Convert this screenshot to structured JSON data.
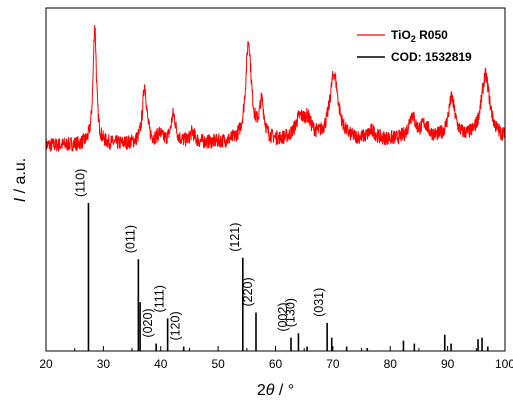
{
  "chart_data": {
    "type": "line",
    "xlabel_theta": "θ",
    "xlabel_prefix": "2",
    "xlabel_suffix": " / °",
    "ylabel_italic": "I",
    "ylabel_suffix": " / a.u.",
    "xlim": [
      20,
      100
    ],
    "xticks": [
      "20",
      "30",
      "40",
      "50",
      "60",
      "70",
      "80",
      "90",
      "100"
    ],
    "legend_position": "top-right",
    "legend": [
      {
        "key": "tio2",
        "name_main": "TiO",
        "name_sub": "2",
        "name_rest": " R050",
        "color": "#ff0000"
      },
      {
        "key": "cod",
        "name_main": "COD: 1532819",
        "name_sub": "",
        "name_rest": "",
        "color": "#000000"
      }
    ],
    "series": [
      {
        "name": "TiO2 R050",
        "color": "#ff0000",
        "baseline": 0.3,
        "noise": 0.045,
        "peaks": [
          {
            "x": 28.5,
            "h": 0.72,
            "w": 0.35
          },
          {
            "x": 37.2,
            "h": 0.35,
            "w": 0.45
          },
          {
            "x": 39.8,
            "h": 0.05,
            "w": 0.5
          },
          {
            "x": 42.2,
            "h": 0.17,
            "w": 0.5
          },
          {
            "x": 45.5,
            "h": 0.06,
            "w": 0.5
          },
          {
            "x": 55.3,
            "h": 0.6,
            "w": 0.6
          },
          {
            "x": 57.6,
            "h": 0.22,
            "w": 0.5
          },
          {
            "x": 64.2,
            "h": 0.12,
            "w": 1.0
          },
          {
            "x": 65.6,
            "h": 0.1,
            "w": 0.8
          },
          {
            "x": 70.2,
            "h": 0.4,
            "w": 0.9
          },
          {
            "x": 76.8,
            "h": 0.05,
            "w": 0.8
          },
          {
            "x": 83.8,
            "h": 0.14,
            "w": 0.7
          },
          {
            "x": 86.0,
            "h": 0.08,
            "w": 0.8
          },
          {
            "x": 90.7,
            "h": 0.24,
            "w": 0.7
          },
          {
            "x": 96.6,
            "h": 0.38,
            "w": 0.9
          }
        ]
      },
      {
        "name": "COD: 1532819",
        "color": "#000000",
        "type": "stick",
        "sticks": [
          {
            "x": 27.4,
            "h": 1.0,
            "label": "(110)"
          },
          {
            "x": 36.1,
            "h": 0.62,
            "label": "(011)"
          },
          {
            "x": 36.4,
            "h": 0.33,
            "label": ""
          },
          {
            "x": 39.2,
            "h": 0.05,
            "label": "(020)"
          },
          {
            "x": 41.2,
            "h": 0.22,
            "label": "(111)"
          },
          {
            "x": 44.0,
            "h": 0.03,
            "label": "(120)"
          },
          {
            "x": 54.3,
            "h": 0.63,
            "label": "(121)"
          },
          {
            "x": 56.6,
            "h": 0.26,
            "label": "(220)"
          },
          {
            "x": 62.7,
            "h": 0.09,
            "label": "(002)"
          },
          {
            "x": 64.0,
            "h": 0.12,
            "label": "(130)"
          },
          {
            "x": 65.5,
            "h": 0.03,
            "label": ""
          },
          {
            "x": 69.0,
            "h": 0.19,
            "label": "(031)"
          },
          {
            "x": 69.8,
            "h": 0.09,
            "label": ""
          },
          {
            "x": 72.4,
            "h": 0.03,
            "label": ""
          },
          {
            "x": 76.0,
            "h": 0.02,
            "label": ""
          },
          {
            "x": 82.3,
            "h": 0.07,
            "label": ""
          },
          {
            "x": 84.2,
            "h": 0.05,
            "label": ""
          },
          {
            "x": 89.5,
            "h": 0.11,
            "label": ""
          },
          {
            "x": 90.6,
            "h": 0.05,
            "label": ""
          },
          {
            "x": 95.3,
            "h": 0.08,
            "label": ""
          },
          {
            "x": 96.0,
            "h": 0.09,
            "label": ""
          },
          {
            "x": 97.0,
            "h": 0.03,
            "label": ""
          }
        ]
      }
    ]
  }
}
